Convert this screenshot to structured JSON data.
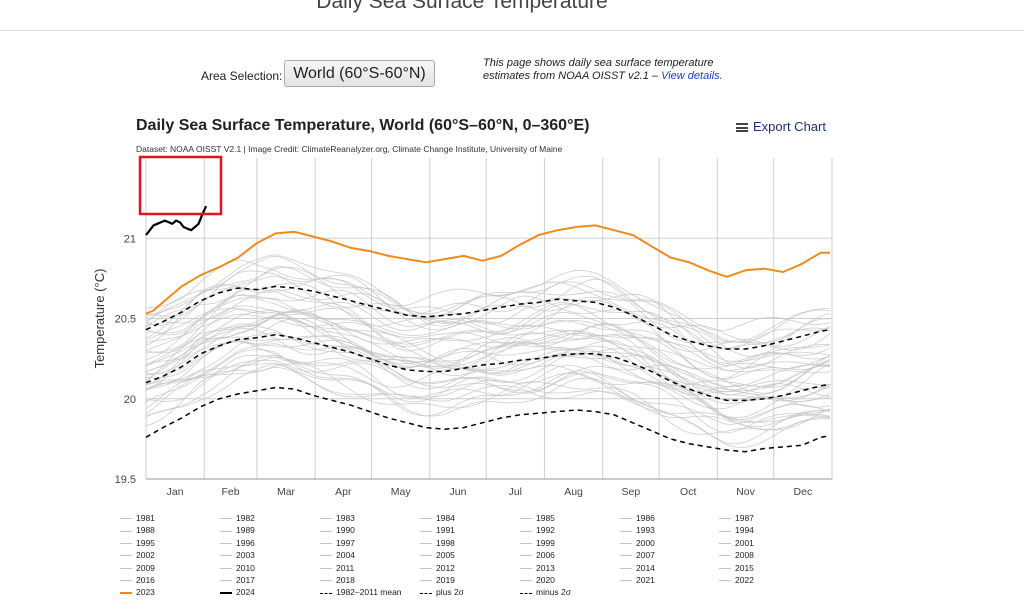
{
  "page": {
    "title": "Daily Sea Surface Temperature",
    "area_selection_label": "Area Selection:",
    "area_selection_value": "World (60°S-60°N)",
    "description_text": "This page shows daily sea surface temperature estimates from NOAA OISST v2.1 – ",
    "description_link": "View details."
  },
  "chart": {
    "title": "Daily Sea Surface Temperature, World (60°S–60°N, 0–360°E)",
    "export_label": "Export Chart",
    "credit": "Dataset: NOAA OISST V2.1 | Image Credit: ClimateReanalyzer.org, Climate Change Institute, University of Maine",
    "ylabel": "Temperature (°C)",
    "yticks": [
      "19.5",
      "20",
      "20.5",
      "21"
    ],
    "months": [
      "Jan",
      "Feb",
      "Mar",
      "Apr",
      "May",
      "Jun",
      "Jul",
      "Aug",
      "Sep",
      "Oct",
      "Nov",
      "Dec"
    ]
  },
  "colors": {
    "year_2023": "#f08a1c",
    "year_2024": "#000000",
    "mean": "#000000",
    "past_years": "#c4c4c4",
    "highlight_box": "#e0141e"
  },
  "chart_data": {
    "type": "line",
    "xlabel": "",
    "ylabel": "Temperature (°C)",
    "ylim": [
      19.5,
      21.5
    ],
    "xlim": [
      1,
      366
    ],
    "grid": true,
    "legend_placement": "bottom",
    "series": [
      {
        "name": "2023",
        "style": "solid-thick",
        "x": [
          1,
          5,
          10,
          20,
          30,
          40,
          50,
          60,
          70,
          80,
          90,
          100,
          110,
          120,
          130,
          140,
          150,
          160,
          170,
          180,
          190,
          200,
          210,
          220,
          230,
          240,
          250,
          260,
          270,
          280,
          290,
          300,
          310,
          320,
          330,
          340,
          350,
          360,
          365
        ],
        "values": [
          20.53,
          20.55,
          20.6,
          20.7,
          20.77,
          20.82,
          20.88,
          20.97,
          21.03,
          21.04,
          21.01,
          20.98,
          20.94,
          20.92,
          20.89,
          20.87,
          20.85,
          20.87,
          20.89,
          20.86,
          20.89,
          20.96,
          21.02,
          21.05,
          21.07,
          21.08,
          21.05,
          21.02,
          20.95,
          20.88,
          20.85,
          20.8,
          20.76,
          20.8,
          20.81,
          20.79,
          20.84,
          20.91,
          20.91
        ]
      },
      {
        "name": "2024",
        "style": "solid-thick",
        "x": [
          1,
          3,
          5,
          7,
          9,
          11,
          13,
          15,
          17,
          19,
          21,
          23,
          25,
          27,
          29,
          31,
          33
        ],
        "values": [
          21.02,
          21.05,
          21.08,
          21.09,
          21.1,
          21.11,
          21.1,
          21.09,
          21.11,
          21.1,
          21.07,
          21.06,
          21.05,
          21.07,
          21.09,
          21.15,
          21.2
        ]
      },
      {
        "name": "1982–2011 mean",
        "style": "dashed",
        "x": [
          1,
          10,
          20,
          30,
          40,
          50,
          60,
          70,
          80,
          90,
          100,
          110,
          120,
          130,
          140,
          150,
          160,
          170,
          180,
          190,
          200,
          210,
          220,
          230,
          240,
          250,
          260,
          270,
          280,
          290,
          300,
          310,
          320,
          330,
          340,
          350,
          360,
          365
        ],
        "values": [
          20.1,
          20.14,
          20.2,
          20.28,
          20.33,
          20.37,
          20.38,
          20.4,
          20.38,
          20.35,
          20.32,
          20.29,
          20.25,
          20.21,
          20.18,
          20.17,
          20.17,
          20.19,
          20.21,
          20.22,
          20.24,
          20.25,
          20.27,
          20.28,
          20.28,
          20.26,
          20.22,
          20.17,
          20.11,
          20.06,
          20.02,
          19.99,
          19.99,
          20.0,
          20.02,
          20.05,
          20.08,
          20.09
        ]
      },
      {
        "name": "plus 2σ",
        "style": "dashed",
        "x": [
          1,
          10,
          20,
          30,
          40,
          50,
          60,
          70,
          80,
          90,
          100,
          110,
          120,
          130,
          140,
          150,
          160,
          170,
          180,
          190,
          200,
          210,
          220,
          230,
          240,
          250,
          260,
          270,
          280,
          290,
          300,
          310,
          320,
          330,
          340,
          350,
          360,
          365
        ],
        "values": [
          20.43,
          20.48,
          20.54,
          20.61,
          20.66,
          20.69,
          20.68,
          20.7,
          20.69,
          20.67,
          20.64,
          20.61,
          20.58,
          20.55,
          20.52,
          20.51,
          20.52,
          20.53,
          20.55,
          20.57,
          20.59,
          20.6,
          20.62,
          20.61,
          20.6,
          20.57,
          20.52,
          20.46,
          20.4,
          20.36,
          20.33,
          20.31,
          20.31,
          20.33,
          20.36,
          20.39,
          20.42,
          20.43
        ]
      },
      {
        "name": "minus 2σ",
        "style": "dashed",
        "x": [
          1,
          10,
          20,
          30,
          40,
          50,
          60,
          70,
          80,
          90,
          100,
          110,
          120,
          130,
          140,
          150,
          160,
          170,
          180,
          190,
          200,
          210,
          220,
          230,
          240,
          250,
          260,
          270,
          280,
          290,
          300,
          310,
          320,
          330,
          340,
          350,
          360,
          365
        ],
        "values": [
          19.76,
          19.82,
          19.88,
          19.95,
          20.0,
          20.03,
          20.05,
          20.07,
          20.06,
          20.02,
          19.99,
          19.96,
          19.92,
          19.88,
          19.85,
          19.82,
          19.81,
          19.82,
          19.85,
          19.88,
          19.9,
          19.91,
          19.92,
          19.93,
          19.92,
          19.9,
          19.85,
          19.8,
          19.75,
          19.72,
          19.7,
          19.68,
          19.67,
          19.69,
          19.7,
          19.71,
          19.76,
          19.77
        ]
      }
    ]
  },
  "legend": {
    "years": [
      "1981",
      "1982",
      "1983",
      "1984",
      "1985",
      "1986",
      "1987",
      "1988",
      "1989",
      "1990",
      "1991",
      "1992",
      "1993",
      "1994",
      "1995",
      "1996",
      "1997",
      "1998",
      "1999",
      "2000",
      "2001",
      "2002",
      "2003",
      "2004",
      "2005",
      "2006",
      "2007",
      "2008",
      "2009",
      "2010",
      "2011",
      "2012",
      "2013",
      "2014",
      "2015",
      "2016",
      "2017",
      "2018",
      "2019",
      "2020",
      "2021",
      "2022"
    ],
    "last_row": [
      "2023",
      "2024",
      "1982–2011 mean",
      "plus 2σ",
      "minus 2σ"
    ]
  }
}
